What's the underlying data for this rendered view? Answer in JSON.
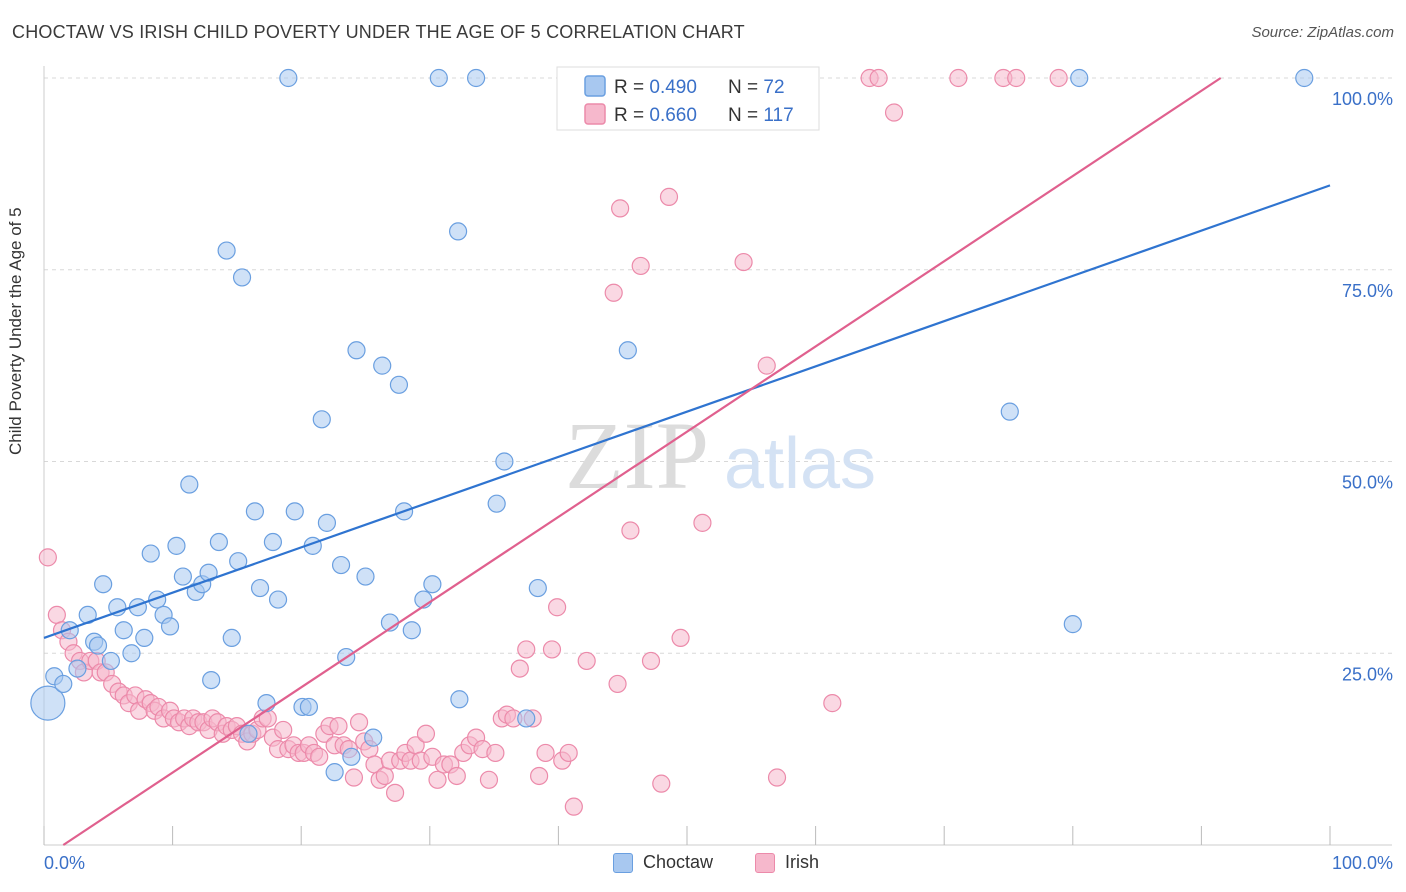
{
  "header": {
    "title": "CHOCTAW VS IRISH CHILD POVERTY UNDER THE AGE OF 5 CORRELATION CHART",
    "source": "Source: ZipAtlas.com"
  },
  "watermark": {
    "zip": "ZIP",
    "atlas": "atlas"
  },
  "colors": {
    "choctaw_fill": "#a8c8f0",
    "choctaw_stroke": "#6a9fe0",
    "choctaw_line": "#2f74d0",
    "irish_fill": "#f6b8cc",
    "irish_stroke": "#ec8aaa",
    "irish_line": "#e0608e",
    "value_text": "#3a70c8",
    "grid": "#d8d8d8"
  },
  "legend_top": {
    "rows": [
      {
        "series": "Choctaw",
        "r_label": "R = ",
        "r_value": "0.490",
        "n_label": "N = ",
        "n_value": "72"
      },
      {
        "series": "Irish",
        "r_label": "R = ",
        "r_value": "0.660",
        "n_label": "N = ",
        "n_value": "117"
      }
    ]
  },
  "legend_bottom": {
    "items": [
      "Choctaw",
      "Irish"
    ]
  },
  "chart_data": {
    "type": "scatter",
    "title": "CHOCTAW VS IRISH CHILD POVERTY UNDER THE AGE OF 5 CORRELATION CHART",
    "xlabel": "",
    "ylabel": "Child Poverty Under the Age of 5",
    "xlim": [
      0,
      100
    ],
    "ylim": [
      0,
      100
    ],
    "x_tick_labels": [
      "0.0%",
      "100.0%"
    ],
    "y_tick_labels": [
      {
        "value": 25,
        "label": "25.0%"
      },
      {
        "value": 50,
        "label": "50.0%"
      },
      {
        "value": 75,
        "label": "75.0%"
      },
      {
        "value": 100,
        "label": "100.0%"
      }
    ],
    "grid": true,
    "legend_placement": "top-center",
    "series": [
      {
        "name": "Choctaw",
        "r": 0.49,
        "n": 72,
        "trend": {
          "x": [
            0,
            100
          ],
          "y": [
            27,
            86
          ]
        },
        "points": [
          [
            0.3,
            18.5
          ],
          [
            0.8,
            22
          ],
          [
            1.5,
            21
          ],
          [
            2,
            28
          ],
          [
            2.6,
            23
          ],
          [
            3.4,
            30
          ],
          [
            3.9,
            26.5
          ],
          [
            4.2,
            26
          ],
          [
            4.6,
            34
          ],
          [
            5.2,
            24
          ],
          [
            5.7,
            31
          ],
          [
            6.2,
            28
          ],
          [
            6.8,
            25
          ],
          [
            7.3,
            31
          ],
          [
            7.8,
            27
          ],
          [
            8.3,
            38
          ],
          [
            8.8,
            32
          ],
          [
            9.3,
            30
          ],
          [
            9.8,
            28.5
          ],
          [
            10.3,
            39
          ],
          [
            10.8,
            35
          ],
          [
            11.3,
            47
          ],
          [
            11.8,
            33
          ],
          [
            12.3,
            34
          ],
          [
            12.8,
            35.5
          ],
          [
            13,
            21.5
          ],
          [
            13.6,
            39.5
          ],
          [
            14.2,
            77.5
          ],
          [
            14.6,
            27
          ],
          [
            15.1,
            37
          ],
          [
            15.4,
            74
          ],
          [
            15.9,
            14.5
          ],
          [
            16.4,
            43.5
          ],
          [
            16.8,
            33.5
          ],
          [
            17.3,
            18.5
          ],
          [
            17.8,
            39.5
          ],
          [
            18.2,
            32
          ],
          [
            19,
            100
          ],
          [
            19.5,
            43.5
          ],
          [
            20.1,
            18
          ],
          [
            20.6,
            18
          ],
          [
            20.9,
            39
          ],
          [
            21.6,
            55.5
          ],
          [
            22,
            42
          ],
          [
            22.6,
            9.5
          ],
          [
            23.1,
            36.5
          ],
          [
            23.5,
            24.5
          ],
          [
            23.9,
            11.5
          ],
          [
            24.3,
            64.5
          ],
          [
            25,
            35
          ],
          [
            25.6,
            14
          ],
          [
            26.3,
            62.5
          ],
          [
            26.9,
            29
          ],
          [
            27.6,
            60
          ],
          [
            28,
            43.5
          ],
          [
            28.6,
            28
          ],
          [
            29.5,
            32
          ],
          [
            30.2,
            34
          ],
          [
            30.7,
            100
          ],
          [
            32.2,
            80
          ],
          [
            32.3,
            19
          ],
          [
            33.6,
            100
          ],
          [
            35.2,
            44.5
          ],
          [
            35.8,
            50
          ],
          [
            37.5,
            16.5
          ],
          [
            38.4,
            33.5
          ],
          [
            45.4,
            64.5
          ],
          [
            75.1,
            56.5
          ],
          [
            80,
            28.8
          ],
          [
            80.5,
            100
          ],
          [
            98,
            100
          ]
        ]
      },
      {
        "name": "Irish",
        "r": 0.66,
        "n": 117,
        "trend": {
          "x": [
            1.5,
            91.5
          ],
          "y": [
            0,
            100
          ]
        },
        "points": [
          [
            0.3,
            37.5
          ],
          [
            1,
            30
          ],
          [
            1.4,
            28
          ],
          [
            1.9,
            26.5
          ],
          [
            2.3,
            25
          ],
          [
            2.8,
            24
          ],
          [
            3.1,
            22.5
          ],
          [
            3.6,
            24
          ],
          [
            4.1,
            24
          ],
          [
            4.4,
            22.5
          ],
          [
            4.8,
            22.5
          ],
          [
            5.3,
            21
          ],
          [
            5.8,
            20
          ],
          [
            6.2,
            19.5
          ],
          [
            6.6,
            18.5
          ],
          [
            7.1,
            19.5
          ],
          [
            7.4,
            17.5
          ],
          [
            7.9,
            19
          ],
          [
            8.3,
            18.5
          ],
          [
            8.6,
            17.5
          ],
          [
            8.9,
            18
          ],
          [
            9.3,
            16.5
          ],
          [
            9.8,
            17.5
          ],
          [
            10.1,
            16.5
          ],
          [
            10.5,
            16
          ],
          [
            10.9,
            16.5
          ],
          [
            11.3,
            15.5
          ],
          [
            11.6,
            16.5
          ],
          [
            12,
            16
          ],
          [
            12.4,
            16
          ],
          [
            12.8,
            15
          ],
          [
            13.1,
            16.5
          ],
          [
            13.5,
            16
          ],
          [
            13.9,
            14.5
          ],
          [
            14.2,
            15.5
          ],
          [
            14.6,
            15
          ],
          [
            15,
            15.5
          ],
          [
            15.4,
            14.5
          ],
          [
            15.8,
            13.5
          ],
          [
            16.2,
            14.5
          ],
          [
            16.6,
            15
          ],
          [
            17,
            16.5
          ],
          [
            17.4,
            16.5
          ],
          [
            17.8,
            14
          ],
          [
            18.2,
            12.5
          ],
          [
            18.6,
            15
          ],
          [
            19,
            12.5
          ],
          [
            19.4,
            13
          ],
          [
            19.8,
            12
          ],
          [
            20.2,
            12
          ],
          [
            20.6,
            13
          ],
          [
            21,
            12
          ],
          [
            21.4,
            11.5
          ],
          [
            21.8,
            14.5
          ],
          [
            22.2,
            15.5
          ],
          [
            22.6,
            13
          ],
          [
            22.9,
            15.5
          ],
          [
            23.3,
            13
          ],
          [
            23.7,
            12.5
          ],
          [
            24.1,
            8.8
          ],
          [
            24.5,
            16
          ],
          [
            24.9,
            13.5
          ],
          [
            25.3,
            12.5
          ],
          [
            25.7,
            10.5
          ],
          [
            26.1,
            8.5
          ],
          [
            26.5,
            9
          ],
          [
            26.9,
            11
          ],
          [
            27.3,
            6.8
          ],
          [
            27.7,
            11
          ],
          [
            28.1,
            12
          ],
          [
            28.5,
            11
          ],
          [
            28.9,
            13
          ],
          [
            29.3,
            11
          ],
          [
            29.7,
            14.5
          ],
          [
            30.2,
            11.5
          ],
          [
            30.6,
            8.5
          ],
          [
            31.1,
            10.5
          ],
          [
            31.6,
            10.5
          ],
          [
            32.1,
            9
          ],
          [
            32.6,
            12
          ],
          [
            33.1,
            13
          ],
          [
            33.6,
            14
          ],
          [
            34.1,
            12.5
          ],
          [
            34.6,
            8.5
          ],
          [
            35.1,
            12
          ],
          [
            35.6,
            16.5
          ],
          [
            36,
            17
          ],
          [
            36.5,
            16.5
          ],
          [
            37,
            23
          ],
          [
            37.5,
            25.5
          ],
          [
            38,
            16.5
          ],
          [
            38.5,
            9
          ],
          [
            39,
            12
          ],
          [
            39.5,
            25.5
          ],
          [
            39.9,
            31
          ],
          [
            40.3,
            11
          ],
          [
            40.8,
            12
          ],
          [
            41.2,
            5
          ],
          [
            42.2,
            24
          ],
          [
            44.3,
            72
          ],
          [
            44.6,
            21
          ],
          [
            44.8,
            83
          ],
          [
            45.6,
            41
          ],
          [
            46.4,
            75.5
          ],
          [
            47.2,
            24
          ],
          [
            47.5,
            100
          ],
          [
            47.8,
            100
          ],
          [
            48,
            8
          ],
          [
            48.6,
            84.5
          ],
          [
            49.5,
            27
          ],
          [
            50.1,
            100
          ],
          [
            51.2,
            42
          ],
          [
            53.1,
            100
          ],
          [
            54.4,
            76
          ],
          [
            54.8,
            100
          ],
          [
            55.1,
            100
          ],
          [
            56.2,
            62.5
          ],
          [
            57,
            8.8
          ],
          [
            58.3,
            100
          ],
          [
            58.6,
            100
          ],
          [
            61.3,
            18.5
          ],
          [
            64.2,
            100
          ],
          [
            64.9,
            100
          ],
          [
            66.1,
            95.5
          ],
          [
            71.1,
            100
          ],
          [
            74.6,
            100
          ],
          [
            75.6,
            100
          ],
          [
            78.9,
            100
          ]
        ]
      }
    ]
  }
}
